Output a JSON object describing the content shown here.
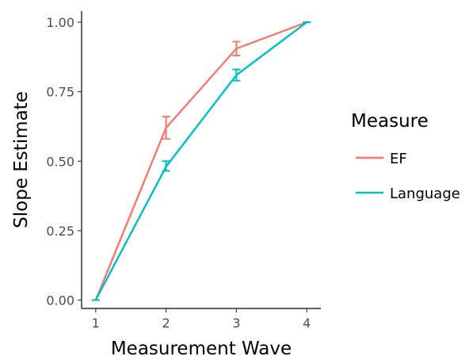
{
  "chart_data": {
    "type": "line",
    "title": "",
    "xlabel": "Measurement Wave",
    "ylabel": "Slope Estimate",
    "x": [
      1,
      2,
      3,
      4
    ],
    "x_tick_labels": [
      "1",
      "2",
      "3",
      "4"
    ],
    "y_tick_labels": [
      "0.00",
      "0.25",
      "0.50",
      "0.75",
      "1.00"
    ],
    "y_ticks": [
      0,
      0.25,
      0.5,
      0.75,
      1
    ],
    "xlim": [
      0.8,
      4.2
    ],
    "ylim": [
      -0.03,
      1.04
    ],
    "grid": false,
    "legend": {
      "title": "Measure",
      "placement": "right"
    },
    "series": [
      {
        "name": "EF",
        "color": "#F8766D",
        "values": [
          0,
          0.62,
          0.905,
          1
        ],
        "error_low": [
          0,
          0.58,
          0.88,
          1
        ],
        "error_high": [
          0,
          0.66,
          0.93,
          1
        ]
      },
      {
        "name": "Language",
        "color": "#00BFC4",
        "values": [
          0,
          0.48,
          0.81,
          1
        ],
        "error_low": [
          0,
          0.465,
          0.79,
          1
        ],
        "error_high": [
          0,
          0.5,
          0.83,
          1
        ]
      }
    ]
  }
}
